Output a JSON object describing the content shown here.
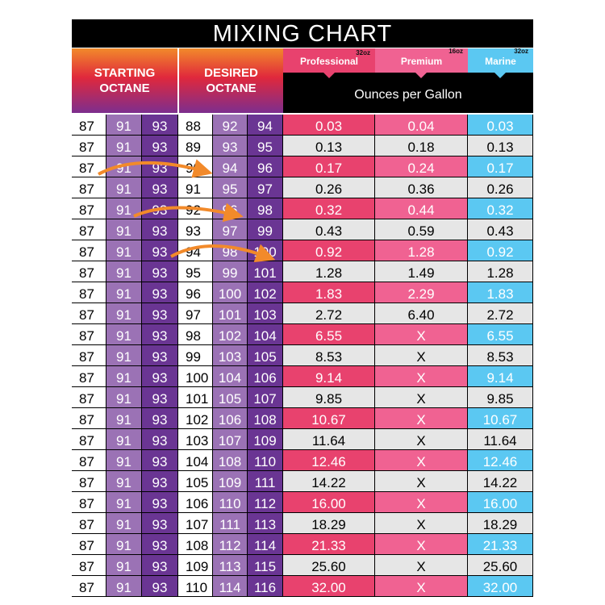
{
  "title": "MIXING CHART",
  "headers": {
    "starting": "STARTING OCTANE",
    "desired": "DESIRED OCTANE",
    "ounces": "Ounces per Gallon"
  },
  "products": [
    {
      "name": "Professional",
      "size": "32oz",
      "color": "#e8426e"
    },
    {
      "name": "Premium",
      "size": "16oz",
      "color": "#f06292"
    },
    {
      "name": "Marine",
      "size": "32oz",
      "color": "#5bc8f2"
    }
  ],
  "colors": {
    "arrow": "#f28a2a",
    "light_purple": "#9b72b5",
    "dark_purple": "#6a3593"
  },
  "rows": [
    [
      "87",
      "91",
      "93",
      "88",
      "92",
      "94",
      "0.03",
      "0.04",
      "0.03"
    ],
    [
      "87",
      "91",
      "93",
      "89",
      "93",
      "95",
      "0.13",
      "0.18",
      "0.13"
    ],
    [
      "87",
      "91",
      "93",
      "90",
      "94",
      "96",
      "0.17",
      "0.24",
      "0.17"
    ],
    [
      "87",
      "91",
      "93",
      "91",
      "95",
      "97",
      "0.26",
      "0.36",
      "0.26"
    ],
    [
      "87",
      "91",
      "93",
      "92",
      "96",
      "98",
      "0.32",
      "0.44",
      "0.32"
    ],
    [
      "87",
      "91",
      "93",
      "93",
      "97",
      "99",
      "0.43",
      "0.59",
      "0.43"
    ],
    [
      "87",
      "91",
      "93",
      "94",
      "98",
      "100",
      "0.92",
      "1.28",
      "0.92"
    ],
    [
      "87",
      "91",
      "93",
      "95",
      "99",
      "101",
      "1.28",
      "1.49",
      "1.28"
    ],
    [
      "87",
      "91",
      "93",
      "96",
      "100",
      "102",
      "1.83",
      "2.29",
      "1.83"
    ],
    [
      "87",
      "91",
      "93",
      "97",
      "101",
      "103",
      "2.72",
      "6.40",
      "2.72"
    ],
    [
      "87",
      "91",
      "93",
      "98",
      "102",
      "104",
      "6.55",
      "X",
      "6.55"
    ],
    [
      "87",
      "91",
      "93",
      "99",
      "103",
      "105",
      "8.53",
      "X",
      "8.53"
    ],
    [
      "87",
      "91",
      "93",
      "100",
      "104",
      "106",
      "9.14",
      "X",
      "9.14"
    ],
    [
      "87",
      "91",
      "93",
      "101",
      "105",
      "107",
      "9.85",
      "X",
      "9.85"
    ],
    [
      "87",
      "91",
      "93",
      "102",
      "106",
      "108",
      "10.67",
      "X",
      "10.67"
    ],
    [
      "87",
      "91",
      "93",
      "103",
      "107",
      "109",
      "11.64",
      "X",
      "11.64"
    ],
    [
      "87",
      "91",
      "93",
      "104",
      "108",
      "110",
      "12.46",
      "X",
      "12.46"
    ],
    [
      "87",
      "91",
      "93",
      "105",
      "109",
      "111",
      "14.22",
      "X",
      "14.22"
    ],
    [
      "87",
      "91",
      "93",
      "106",
      "110",
      "112",
      "16.00",
      "X",
      "16.00"
    ],
    [
      "87",
      "91",
      "93",
      "107",
      "111",
      "113",
      "18.29",
      "X",
      "18.29"
    ],
    [
      "87",
      "91",
      "93",
      "108",
      "112",
      "114",
      "21.33",
      "X",
      "21.33"
    ],
    [
      "87",
      "91",
      "93",
      "109",
      "113",
      "115",
      "25.60",
      "X",
      "25.60"
    ],
    [
      "87",
      "91",
      "93",
      "110",
      "114",
      "116",
      "32.00",
      "X",
      "32.00"
    ]
  ]
}
